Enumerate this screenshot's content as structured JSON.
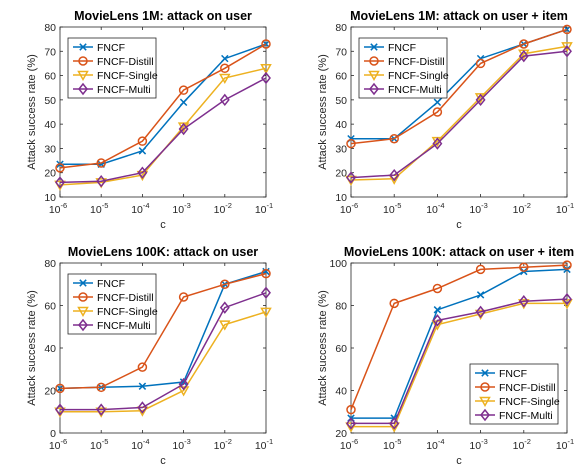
{
  "chart_data": [
    {
      "type": "line",
      "title": "MovieLens 1M: attack on user",
      "xlabel": "c",
      "ylabel": "Attack success rate (%)",
      "x": [
        1e-06,
        1e-05,
        0.0001,
        0.001,
        0.01,
        0.1
      ],
      "xtick_labels": [
        [
          "10",
          "-6"
        ],
        [
          "10",
          "-5"
        ],
        [
          "10",
          "-4"
        ],
        [
          "10",
          "-3"
        ],
        [
          "10",
          "-2"
        ],
        [
          "10",
          "-1"
        ]
      ],
      "xscale": "log",
      "ylim": [
        10,
        80
      ],
      "yticks": [
        10,
        20,
        30,
        40,
        50,
        60,
        70,
        80
      ],
      "legend_loc": "top-left",
      "series": [
        {
          "name": "FNCF",
          "color": "#0072BD",
          "marker": "x",
          "values": [
            23.5,
            23.5,
            29,
            49,
            67,
            73
          ]
        },
        {
          "name": "FNCF-Distill",
          "color": "#D95319",
          "marker": "o",
          "values": [
            22,
            24,
            33,
            54,
            63,
            73
          ]
        },
        {
          "name": "FNCF-Single",
          "color": "#EDB120",
          "marker": "v",
          "values": [
            15,
            16,
            19,
            39,
            59,
            63
          ]
        },
        {
          "name": "FNCF-Multi",
          "color": "#7E2F8E",
          "marker": "d",
          "values": [
            16,
            16.5,
            20,
            38,
            50,
            59
          ]
        }
      ]
    },
    {
      "type": "line",
      "title": "MovieLens 1M: attack on user + item",
      "xlabel": "c",
      "ylabel": "Attack success rate (%)",
      "x": [
        1e-06,
        1e-05,
        0.0001,
        0.001,
        0.01,
        0.1
      ],
      "xtick_labels": [
        [
          "10",
          "-6"
        ],
        [
          "10",
          "-5"
        ],
        [
          "10",
          "-4"
        ],
        [
          "10",
          "-3"
        ],
        [
          "10",
          "-2"
        ],
        [
          "10",
          "-1"
        ]
      ],
      "xscale": "log",
      "ylim": [
        10,
        80
      ],
      "yticks": [
        10,
        20,
        30,
        40,
        50,
        60,
        70,
        80
      ],
      "legend_loc": "top-left",
      "series": [
        {
          "name": "FNCF",
          "color": "#0072BD",
          "marker": "x",
          "values": [
            34,
            34,
            49,
            67,
            73,
            79
          ]
        },
        {
          "name": "FNCF-Distill",
          "color": "#D95319",
          "marker": "o",
          "values": [
            32,
            34,
            45,
            65,
            73,
            79
          ]
        },
        {
          "name": "FNCF-Single",
          "color": "#EDB120",
          "marker": "v",
          "values": [
            17,
            17.5,
            33,
            51,
            69,
            72
          ]
        },
        {
          "name": "FNCF-Multi",
          "color": "#7E2F8E",
          "marker": "d",
          "values": [
            18,
            19,
            32,
            50,
            68,
            70
          ]
        }
      ]
    },
    {
      "type": "line",
      "title": "MovieLens 100K: attack on user",
      "xlabel": "c",
      "ylabel": "Attack success rate (%)",
      "x": [
        1e-06,
        1e-05,
        0.0001,
        0.001,
        0.01,
        0.1
      ],
      "xtick_labels": [
        [
          "10",
          "-6"
        ],
        [
          "10",
          "-5"
        ],
        [
          "10",
          "-4"
        ],
        [
          "10",
          "-3"
        ],
        [
          "10",
          "-2"
        ],
        [
          "10",
          "-1"
        ]
      ],
      "xscale": "log",
      "ylim": [
        0,
        80
      ],
      "yticks": [
        0,
        20,
        40,
        60,
        80
      ],
      "legend_loc": "top-left",
      "series": [
        {
          "name": "FNCF",
          "color": "#0072BD",
          "marker": "x",
          "values": [
            21,
            21.5,
            22,
            24,
            70,
            76
          ]
        },
        {
          "name": "FNCF-Distill",
          "color": "#D95319",
          "marker": "o",
          "values": [
            21,
            21.5,
            31,
            64,
            70,
            75
          ]
        },
        {
          "name": "FNCF-Single",
          "color": "#EDB120",
          "marker": "v",
          "values": [
            10,
            10,
            10.5,
            20,
            51,
            57
          ]
        },
        {
          "name": "FNCF-Multi",
          "color": "#7E2F8E",
          "marker": "d",
          "values": [
            11,
            11,
            12,
            23,
            59,
            66
          ]
        }
      ]
    },
    {
      "type": "line",
      "title": "MovieLens 100K: attack on user + item",
      "xlabel": "c",
      "ylabel": "Attack success rate (%)",
      "x": [
        1e-06,
        1e-05,
        0.0001,
        0.001,
        0.01,
        0.1
      ],
      "xtick_labels": [
        [
          "10",
          "-6"
        ],
        [
          "10",
          "-5"
        ],
        [
          "10",
          "-4"
        ],
        [
          "10",
          "-3"
        ],
        [
          "10",
          "-2"
        ],
        [
          "10",
          "-1"
        ]
      ],
      "xscale": "log",
      "ylim": [
        20,
        100
      ],
      "yticks": [
        20,
        40,
        60,
        80,
        100
      ],
      "legend_loc": "bottom-right",
      "series": [
        {
          "name": "FNCF",
          "color": "#0072BD",
          "marker": "x",
          "values": [
            27,
            27,
            78,
            85,
            96,
            97
          ]
        },
        {
          "name": "FNCF-Distill",
          "color": "#D95319",
          "marker": "o",
          "values": [
            31,
            81,
            88,
            97,
            98,
            99
          ]
        },
        {
          "name": "FNCF-Single",
          "color": "#EDB120",
          "marker": "v",
          "values": [
            23,
            23,
            71,
            76,
            81,
            81
          ]
        },
        {
          "name": "FNCF-Multi",
          "color": "#7E2F8E",
          "marker": "d",
          "values": [
            24.5,
            24.5,
            73,
            77,
            82,
            83
          ]
        }
      ]
    }
  ]
}
